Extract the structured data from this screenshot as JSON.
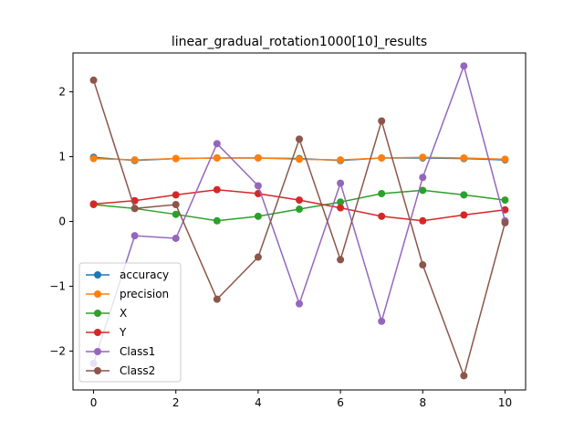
{
  "chart_data": {
    "type": "line",
    "title": "linear_gradual_rotation1000[10]_results",
    "xlabel": "",
    "ylabel": "",
    "x": [
      0,
      1,
      2,
      3,
      4,
      5,
      6,
      7,
      8,
      9,
      10
    ],
    "xlim": [
      -0.5,
      10.5
    ],
    "ylim": [
      -2.6,
      2.6
    ],
    "xticks": [
      0,
      2,
      4,
      6,
      8,
      10
    ],
    "yticks": [
      -2,
      -1,
      0,
      1,
      2
    ],
    "ytick_labels": [
      "−2",
      "−1",
      "0",
      "1",
      "2"
    ],
    "grid": false,
    "legend_position": "lower-left",
    "series": [
      {
        "name": "accuracy",
        "color": "#1f77b4",
        "values": [
          0.99,
          0.94,
          0.97,
          0.98,
          0.98,
          0.97,
          0.94,
          0.98,
          0.98,
          0.97,
          0.95
        ]
      },
      {
        "name": "precision",
        "color": "#ff7f0e",
        "values": [
          0.97,
          0.95,
          0.97,
          0.98,
          0.98,
          0.96,
          0.95,
          0.98,
          0.99,
          0.98,
          0.96
        ]
      },
      {
        "name": "X",
        "color": "#2ca02c",
        "values": [
          0.26,
          0.2,
          0.11,
          0.01,
          0.08,
          0.19,
          0.3,
          0.43,
          0.48,
          0.41,
          0.33
        ]
      },
      {
        "name": "Y",
        "color": "#d62728",
        "values": [
          0.27,
          0.32,
          0.41,
          0.49,
          0.43,
          0.33,
          0.21,
          0.08,
          0.01,
          0.1,
          0.18
        ]
      },
      {
        "name": "Class1",
        "color": "#9467bd",
        "values": [
          -2.19,
          -0.22,
          -0.26,
          1.2,
          0.55,
          -1.27,
          0.59,
          -1.54,
          0.68,
          2.4,
          0.01
        ]
      },
      {
        "name": "Class2",
        "color": "#8c564b",
        "values": [
          2.18,
          0.2,
          0.26,
          -1.2,
          -0.55,
          1.27,
          -0.59,
          1.55,
          -0.67,
          -2.38,
          -0.02
        ]
      }
    ]
  }
}
